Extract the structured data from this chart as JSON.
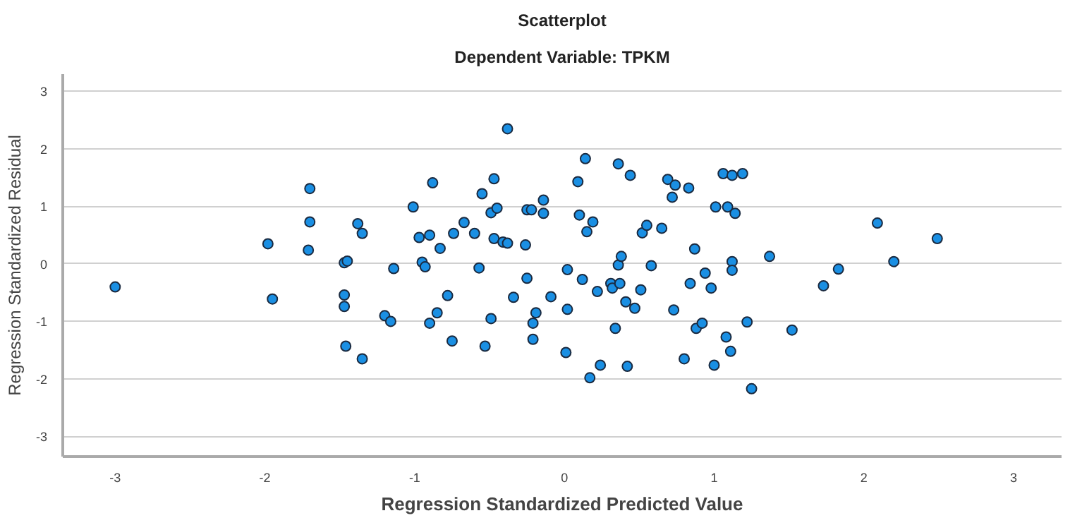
{
  "chart_data": {
    "type": "scatter",
    "title": "Scatterplot",
    "subtitle": "Dependent Variable: TPKM",
    "xlabel": "Regression Standardized Predicted Value",
    "ylabel": "Regression Standardized Residual",
    "xlim": [
      -3.35,
      3.32
    ],
    "ylim": [
      -3.35,
      3.3
    ],
    "xticks": [
      -3,
      -2,
      -1,
      0,
      1,
      2,
      3
    ],
    "yticks": [
      -3,
      -2,
      -1,
      0,
      1,
      2,
      3
    ],
    "grid": "y",
    "marker": "circle",
    "series": [
      {
        "color": "#1a8fe3",
        "x": [
          -3.0,
          -1.95,
          -1.98,
          -1.7,
          -1.7,
          -1.71,
          -1.38,
          -1.35,
          -1.47,
          -1.45,
          -1.47,
          -1.47,
          -1.46,
          -1.35,
          -1.14,
          -1.2,
          -1.16,
          -1.01,
          -0.97,
          -0.9,
          -0.95,
          -0.93,
          -0.88,
          -0.83,
          -0.78,
          -0.9,
          -0.85,
          -0.75,
          -0.74,
          -0.67,
          -0.6,
          -0.57,
          -0.55,
          -0.53,
          -0.49,
          -0.49,
          -0.47,
          -0.45,
          -0.47,
          -0.41,
          -0.38,
          -0.38,
          -0.34,
          -0.26,
          -0.25,
          -0.25,
          -0.22,
          -0.21,
          -0.19,
          -0.21,
          -0.14,
          -0.14,
          -0.09,
          0.01,
          0.02,
          0.02,
          0.09,
          0.1,
          0.12,
          0.14,
          0.15,
          0.17,
          0.19,
          0.22,
          0.24,
          0.31,
          0.32,
          0.34,
          0.36,
          0.36,
          0.37,
          0.38,
          0.41,
          0.42,
          0.44,
          0.47,
          0.51,
          0.52,
          0.55,
          0.58,
          0.65,
          0.69,
          0.72,
          0.73,
          0.74,
          0.8,
          0.83,
          0.84,
          0.87,
          0.88,
          0.92,
          0.94,
          0.98,
          1.01,
          1.0,
          1.06,
          1.12,
          1.19,
          1.09,
          1.14,
          1.12,
          1.12,
          1.22,
          1.08,
          1.11,
          1.25,
          1.37,
          1.52,
          1.73,
          1.83,
          2.09,
          2.2,
          2.49
        ],
        "values": [
          -0.4,
          -0.61,
          0.35,
          1.31,
          0.73,
          0.24,
          0.7,
          0.53,
          0.02,
          0.05,
          -0.54,
          -0.74,
          -1.43,
          -1.65,
          -0.08,
          -0.9,
          -1.0,
          0.99,
          0.46,
          0.5,
          0.03,
          -0.05,
          1.41,
          0.27,
          -0.55,
          -1.03,
          -0.85,
          -1.34,
          0.53,
          0.72,
          0.53,
          -0.07,
          1.22,
          -1.43,
          -0.95,
          0.89,
          1.48,
          0.97,
          0.44,
          0.38,
          0.36,
          2.35,
          -0.58,
          0.33,
          -0.25,
          0.94,
          0.94,
          -1.03,
          -0.85,
          -1.31,
          1.11,
          0.88,
          -0.57,
          -1.54,
          -0.1,
          -0.79,
          1.43,
          0.85,
          -0.27,
          1.83,
          0.56,
          -1.98,
          0.73,
          -0.48,
          -1.76,
          -0.34,
          -0.42,
          -1.12,
          1.74,
          -0.02,
          -0.34,
          0.13,
          -0.66,
          -1.78,
          1.54,
          -0.77,
          -0.45,
          0.54,
          0.67,
          -0.03,
          0.62,
          1.47,
          1.16,
          -0.8,
          1.37,
          -1.65,
          1.32,
          -0.34,
          0.26,
          -1.12,
          -1.03,
          -0.16,
          -0.42,
          0.99,
          -1.76,
          1.57,
          1.54,
          1.57,
          0.99,
          0.88,
          0.04,
          -0.11,
          -1.01,
          -1.27,
          -1.52,
          -2.17,
          0.13,
          -1.15,
          -0.38,
          -0.09,
          0.71,
          0.04,
          0.44
        ]
      }
    ]
  }
}
